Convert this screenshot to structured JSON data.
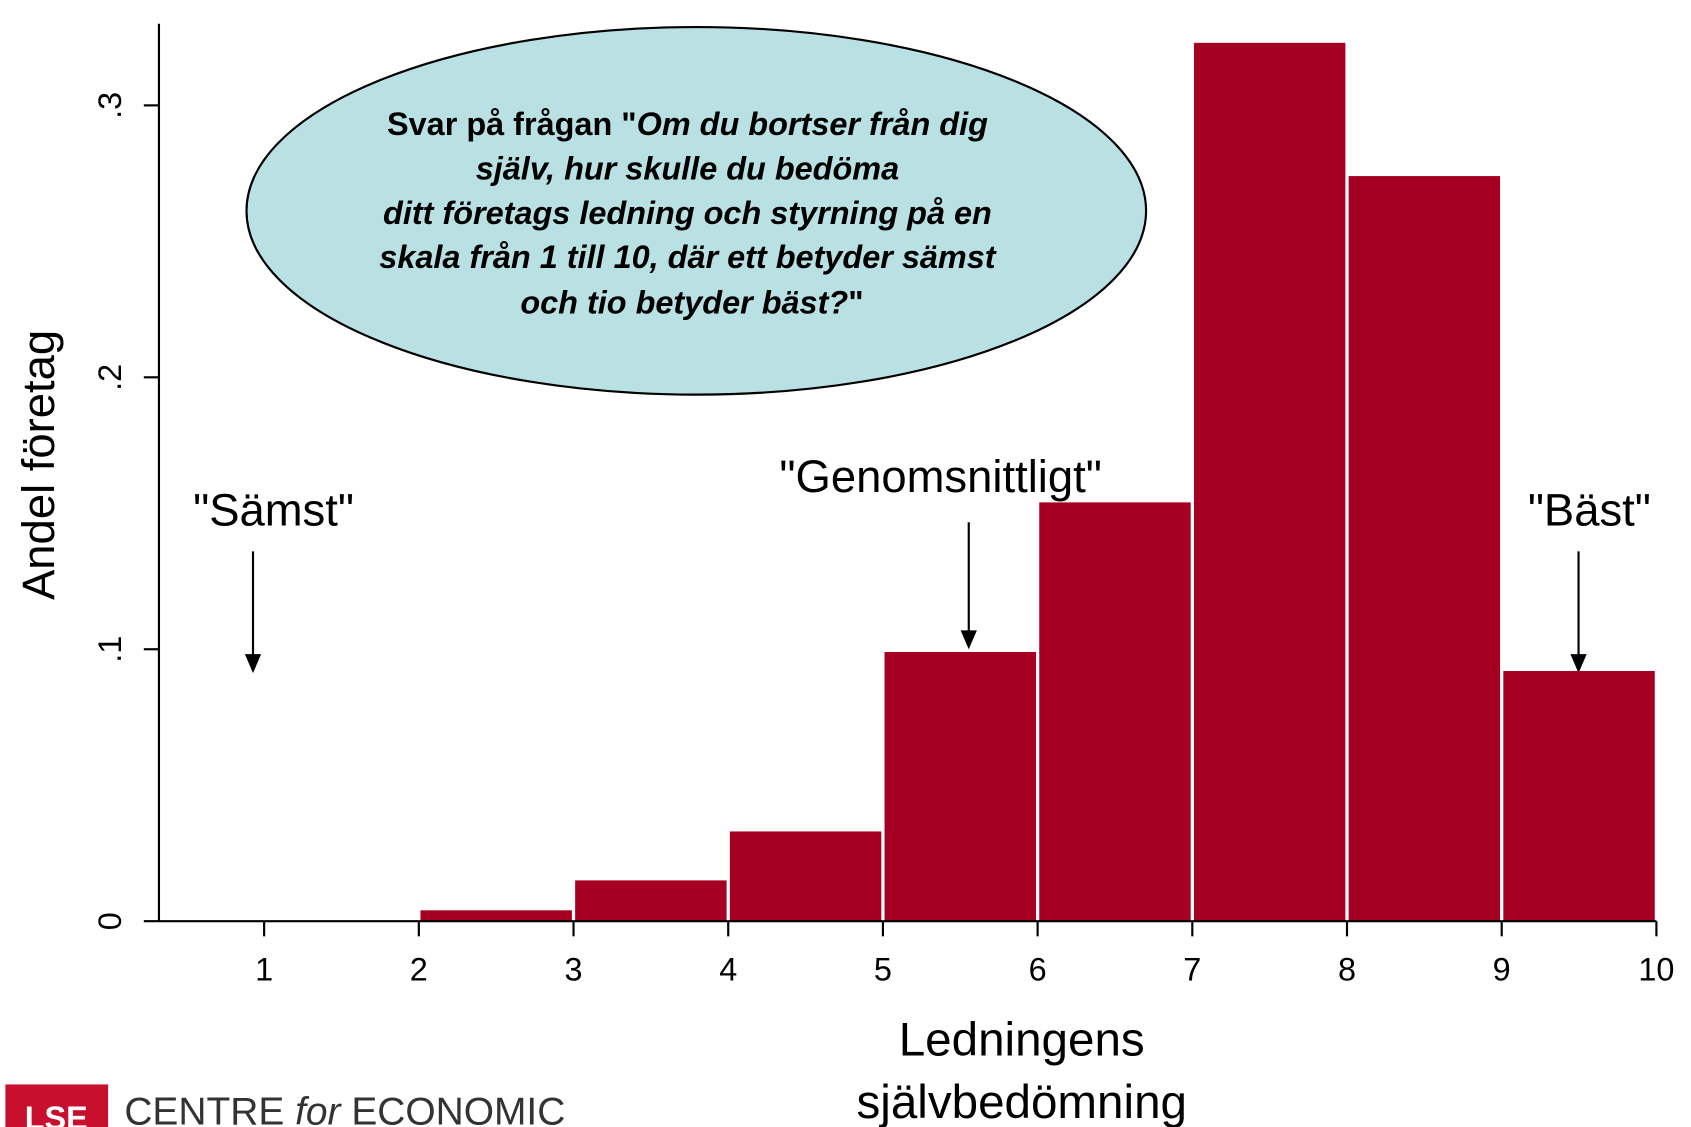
{
  "chart_data": {
    "type": "histogram",
    "bins": [
      1,
      2,
      3,
      4,
      5,
      6,
      7,
      8,
      9,
      10
    ],
    "values": [
      0,
      0.004,
      0.015,
      0.033,
      0.099,
      0.154,
      0.323,
      0.274,
      0.092
    ],
    "color": "#a50021",
    "xlim": [
      0.32,
      10
    ],
    "ylim": [
      0,
      0.33
    ],
    "xticks": [
      1,
      2,
      3,
      4,
      5,
      6,
      7,
      8,
      9,
      10
    ],
    "yticks": [
      0,
      {
        "value": 0.1,
        "label": ".1"
      },
      {
        "value": 0.2,
        "label": ".2"
      },
      {
        "value": 0.3,
        "label": ".3"
      }
    ],
    "y_label": "Andel företag",
    "x_label": [
      "Ledningens",
      "självbedömning"
    ],
    "annotations": [
      "\"Sämst\"",
      "\"Genomsnittligt\"",
      "\"Bäst\""
    ],
    "callout": {
      "prefix": "Svar på frågan \"",
      "lines": [
        "Om du bortser från dig",
        "själv, hur skulle du bedöma",
        "ditt företags ledning och styrning på en",
        "skala från 1 till 10, där ett betyder sämst",
        "och tio betyder bäst?"
      ],
      "suffix": "\""
    }
  },
  "logo": {
    "mark": "LSE",
    "text": [
      "CENTRE ",
      "for",
      " ECONOMIC"
    ]
  }
}
